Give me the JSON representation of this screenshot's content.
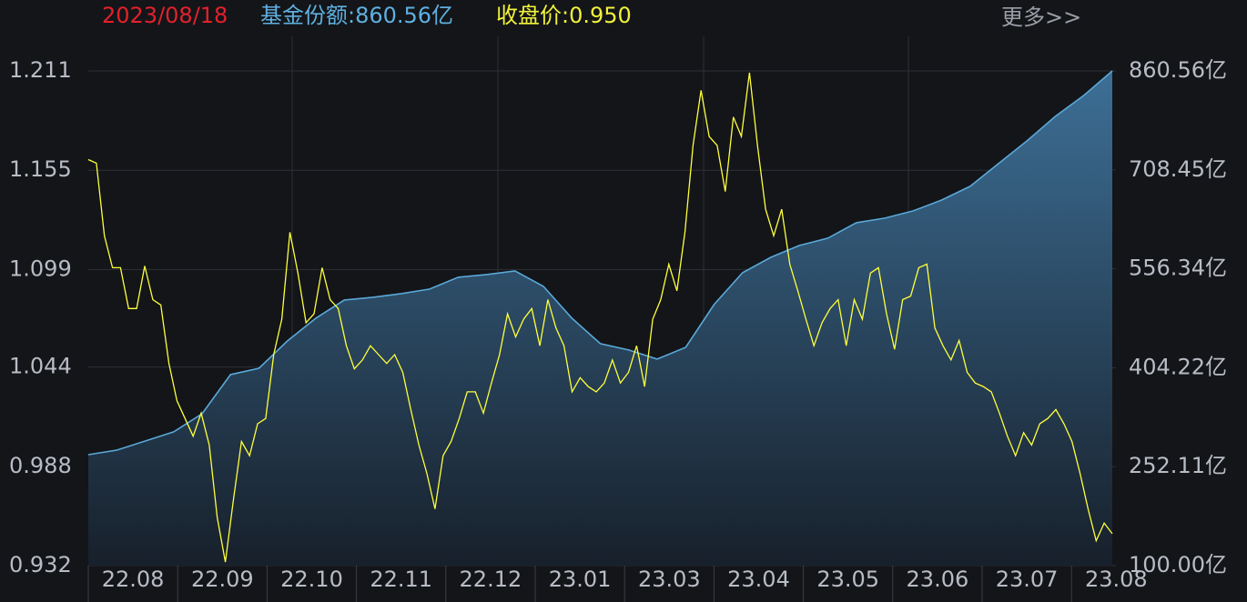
{
  "chart_data": {
    "type": "line",
    "header": {
      "date": "2023/08/18",
      "share": "基金份额:860.56亿",
      "price": "收盘价:0.950",
      "more": "更多>>"
    },
    "x_labels": [
      "22.08",
      "22.09",
      "22.10",
      "22.11",
      "22.12",
      "23.01",
      "23.03",
      "23.04",
      "23.05",
      "23.06",
      "23.07",
      "23.08"
    ],
    "ylim": [
      0.932,
      1.211
    ],
    "yticks": [
      0.932,
      0.988,
      1.044,
      1.099,
      1.155,
      1.211
    ],
    "y2lim": [
      100,
      860.56
    ],
    "y2ticks": [
      {
        "value": 100,
        "label": "100.00亿"
      },
      {
        "value": 252.11,
        "label": "252.11亿"
      },
      {
        "value": 404.22,
        "label": "404.22亿"
      },
      {
        "value": 556.34,
        "label": "556.34亿"
      },
      {
        "value": 708.45,
        "label": "708.45亿"
      },
      {
        "value": 860.56,
        "label": "860.56亿"
      }
    ],
    "grid": true,
    "series": [
      {
        "color": "#5aa8d8",
        "axis": "y2",
        "area": true,
        "values": [
          270.6,
          277.6,
          291.6,
          305.6,
          333.5,
          393.7,
          403.4,
          445.5,
          480.4,
          508.4,
          512.6,
          518.2,
          525.2,
          543.3,
          547.5,
          553.1,
          529.3,
          480.4,
          441.3,
          431.5,
          417.5,
          435.6,
          501.4,
          550.3,
          574.1,
          592.3,
          603.4,
          627.2,
          634.2,
          645.4,
          662.1,
          683.1,
          718.1,
          753.0,
          790.8,
          822.9,
          860.56
        ]
      },
      {
        "color": "#ffff3c",
        "values": [
          1.161,
          1.159,
          1.118,
          1.1,
          1.1,
          1.077,
          1.077,
          1.101,
          1.082,
          1.079,
          1.046,
          1.025,
          1.015,
          1.005,
          1.018,
          1.0,
          0.959,
          0.934,
          0.969,
          1.002,
          0.994,
          1.012,
          1.015,
          1.051,
          1.071,
          1.12,
          1.097,
          1.069,
          1.074,
          1.1,
          1.082,
          1.077,
          1.056,
          1.043,
          1.048,
          1.056,
          1.051,
          1.046,
          1.051,
          1.041,
          1.02,
          1.0,
          0.984,
          0.964,
          0.994,
          1.002,
          1.015,
          1.03,
          1.03,
          1.018,
          1.035,
          1.051,
          1.074,
          1.061,
          1.071,
          1.077,
          1.056,
          1.082,
          1.066,
          1.056,
          1.03,
          1.038,
          1.033,
          1.03,
          1.035,
          1.048,
          1.035,
          1.041,
          1.056,
          1.033,
          1.071,
          1.082,
          1.102,
          1.087,
          1.12,
          1.169,
          1.2,
          1.174,
          1.169,
          1.143,
          1.185,
          1.174,
          1.21,
          1.169,
          1.133,
          1.118,
          1.133,
          1.102,
          1.087,
          1.071,
          1.056,
          1.069,
          1.077,
          1.082,
          1.056,
          1.082,
          1.071,
          1.097,
          1.1,
          1.074,
          1.054,
          1.082,
          1.084,
          1.1,
          1.102,
          1.066,
          1.056,
          1.048,
          1.059,
          1.041,
          1.035,
          1.033,
          1.03,
          1.018,
          1.005,
          0.994,
          1.007,
          1.0,
          1.012,
          1.015,
          1.02,
          1.012,
          1.002,
          0.984,
          0.964,
          0.946,
          0.956,
          0.95
        ]
      }
    ]
  }
}
